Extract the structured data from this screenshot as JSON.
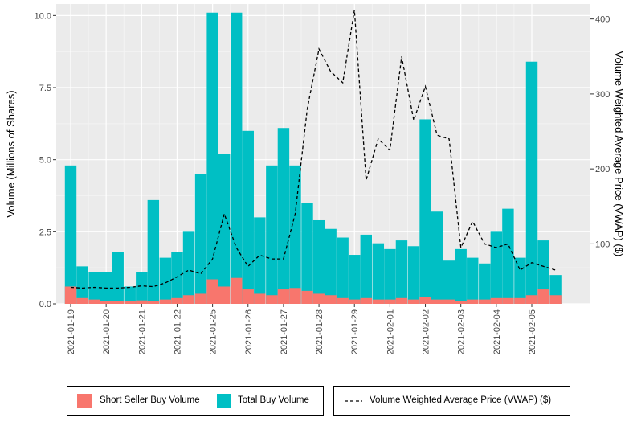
{
  "chart_data": {
    "type": "bar",
    "ylabel": "Volume (Millions of Shares)",
    "y2label": "Volume Weighted Average Price (VWAP) ($)",
    "ylim": [
      0,
      10.4
    ],
    "y2lim": [
      20,
      420
    ],
    "yticks": [
      "0.0",
      "2.5",
      "5.0",
      "7.5",
      "10.0"
    ],
    "y2ticks": [
      "100",
      "200",
      "300",
      "400"
    ],
    "xticks": [
      "2021-01-19",
      "2021-01-20",
      "2021-01-21",
      "2021-01-22",
      "2021-01-25",
      "2021-01-26",
      "2021-01-27",
      "2021-01-28",
      "2021-01-29",
      "2021-02-01",
      "2021-02-02",
      "2021-02-03",
      "2021-02-04",
      "2021-02-05"
    ],
    "grid": true,
    "colors": {
      "short": "#F8766D",
      "total": "#00BFC4",
      "vwap": "#000000",
      "panel": "#EBEBEB",
      "grid": "#FFFFFF"
    },
    "series": [
      {
        "name": "Short Seller Buy Volume",
        "axis": "left",
        "type": "bar",
        "x": [
          0.0,
          0.33,
          0.67,
          1.0,
          1.33,
          1.67,
          2.0,
          2.33,
          2.67,
          3.0,
          3.33,
          3.67,
          4.0,
          4.33,
          4.67,
          5.0,
          5.33,
          5.67,
          6.0,
          6.33,
          6.67,
          7.0,
          7.33,
          7.67,
          8.0,
          8.33,
          8.67,
          9.0,
          9.33,
          9.67,
          10.0,
          10.33,
          10.67,
          11.0,
          11.33,
          11.67,
          12.0,
          12.33,
          12.67,
          13.0,
          13.33,
          13.67
        ],
        "values": [
          0.6,
          0.2,
          0.15,
          0.1,
          0.1,
          0.1,
          0.12,
          0.1,
          0.15,
          0.2,
          0.3,
          0.35,
          0.85,
          0.6,
          0.9,
          0.5,
          0.35,
          0.3,
          0.5,
          0.55,
          0.45,
          0.35,
          0.3,
          0.2,
          0.15,
          0.2,
          0.15,
          0.15,
          0.2,
          0.15,
          0.25,
          0.15,
          0.15,
          0.1,
          0.15,
          0.15,
          0.2,
          0.2,
          0.2,
          0.3,
          0.5,
          0.3
        ]
      },
      {
        "name": "Total Buy Volume",
        "axis": "left",
        "type": "bar",
        "x": [
          0.0,
          0.33,
          0.67,
          1.0,
          1.33,
          1.67,
          2.0,
          2.33,
          2.67,
          3.0,
          3.33,
          3.67,
          4.0,
          4.33,
          4.67,
          5.0,
          5.33,
          5.67,
          6.0,
          6.33,
          6.67,
          7.0,
          7.33,
          7.67,
          8.0,
          8.33,
          8.67,
          9.0,
          9.33,
          9.67,
          10.0,
          10.33,
          10.67,
          11.0,
          11.33,
          11.67,
          12.0,
          12.33,
          12.67,
          13.0,
          13.33,
          13.67
        ],
        "values": [
          4.8,
          1.3,
          1.1,
          1.1,
          1.8,
          0.6,
          1.1,
          3.6,
          1.6,
          1.8,
          2.5,
          4.5,
          10.1,
          5.2,
          10.1,
          6.0,
          3.0,
          4.8,
          6.1,
          4.8,
          3.5,
          2.9,
          2.6,
          2.3,
          1.7,
          2.4,
          2.1,
          1.9,
          2.2,
          2.0,
          6.4,
          3.2,
          1.5,
          1.9,
          1.6,
          1.4,
          2.5,
          3.3,
          1.6,
          8.4,
          2.2,
          1.0
        ]
      },
      {
        "name": "Volume Weighted Average Price (VWAP) ($)",
        "axis": "right",
        "type": "line",
        "x": [
          0.0,
          0.33,
          0.67,
          1.0,
          1.33,
          1.67,
          2.0,
          2.33,
          2.67,
          3.0,
          3.33,
          3.67,
          4.0,
          4.33,
          4.67,
          5.0,
          5.33,
          5.67,
          6.0,
          6.33,
          6.67,
          7.0,
          7.33,
          7.67,
          8.0,
          8.33,
          8.67,
          9.0,
          9.33,
          9.67,
          10.0,
          10.33,
          10.67,
          11.0,
          11.33,
          11.67,
          12.0,
          12.33,
          12.67,
          13.0,
          13.33,
          13.67
        ],
        "values": [
          42,
          41,
          42,
          41,
          41,
          42,
          44,
          43,
          48,
          56,
          65,
          60,
          80,
          140,
          95,
          70,
          85,
          80,
          80,
          140,
          280,
          360,
          330,
          315,
          412,
          185,
          240,
          225,
          350,
          265,
          310,
          245,
          240,
          95,
          130,
          100,
          95,
          100,
          65,
          75,
          70,
          65
        ]
      }
    ]
  },
  "legend": {
    "bars_short": "Short Seller Buy Volume",
    "bars_total": "Total Buy Volume",
    "line": "Volume Weighted Average Price (VWAP) ($)"
  }
}
